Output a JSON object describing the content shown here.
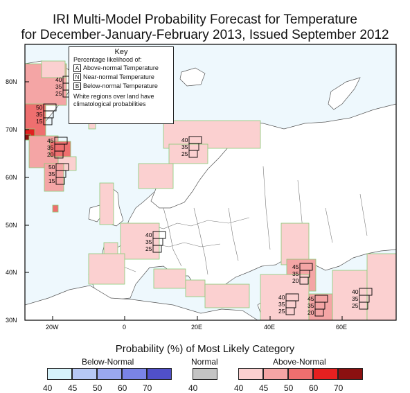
{
  "title": {
    "line1": "IRI Multi-Model Probability Forecast for Temperature",
    "line2": "for December-January-February 2013, Issued September 2012"
  },
  "map": {
    "lat_labels": [
      "80N",
      "70N",
      "60N",
      "50N",
      "40N",
      "30N"
    ],
    "lon_labels": [
      "20W",
      "0",
      "20E",
      "40E",
      "60E"
    ],
    "colors": {
      "ocean": "#eef8fd",
      "land": "#ffffff",
      "border": "#666666",
      "above_40": "#fbd0d0",
      "above_45": "#f4a5a5",
      "above_50": "#ee6f6f",
      "above_60": "#e02020",
      "above_70": "#8b1010",
      "cell_edge": "#88cc77"
    },
    "forecast_markers": [
      {
        "a": "40",
        "n": "35",
        "b": "25"
      },
      {
        "a": "50",
        "n": "35",
        "b": "15"
      },
      {
        "a": "45",
        "n": "35",
        "b": "20"
      },
      {
        "a": "50",
        "n": "35",
        "b": "15"
      },
      {
        "a": "40",
        "n": "35",
        "b": "25"
      },
      {
        "a": "40",
        "n": "35",
        "b": "25"
      },
      {
        "a": "45",
        "n": "35",
        "b": "20"
      },
      {
        "a": "40",
        "n": "35",
        "b": "25"
      },
      {
        "a": "45",
        "n": "35",
        "b": "20"
      },
      {
        "a": "40",
        "n": "35",
        "b": "25"
      }
    ]
  },
  "key": {
    "title": "Key",
    "subtitle": "Percentage likelihood of:",
    "rows": [
      {
        "letter": "A",
        "label": "Above-normal Temperature"
      },
      {
        "letter": "N",
        "label": "Near-normal Temperature"
      },
      {
        "letter": "B",
        "label": "Below-normal Temperature"
      }
    ],
    "note_line1": "White regions over land have",
    "note_line2": "climatological probabilities"
  },
  "legend": {
    "title": "Probability (%) of Most Likely Category",
    "below": {
      "label": "Below-Normal",
      "ticks": [
        "40",
        "45",
        "50",
        "60",
        "70"
      ],
      "colors": [
        "#d6f3fb",
        "#b6c8f4",
        "#9aa8ef",
        "#7a84e6",
        "#5050c8"
      ]
    },
    "normal": {
      "label": "Normal",
      "ticks": [
        "40"
      ],
      "colors": [
        "#c4c4c4"
      ]
    },
    "above": {
      "label": "Above-Normal",
      "ticks": [
        "40",
        "45",
        "50",
        "60",
        "70"
      ],
      "colors": [
        "#fbd0d0",
        "#f4a5a5",
        "#ee6f6f",
        "#e62020",
        "#8b1010"
      ]
    }
  }
}
